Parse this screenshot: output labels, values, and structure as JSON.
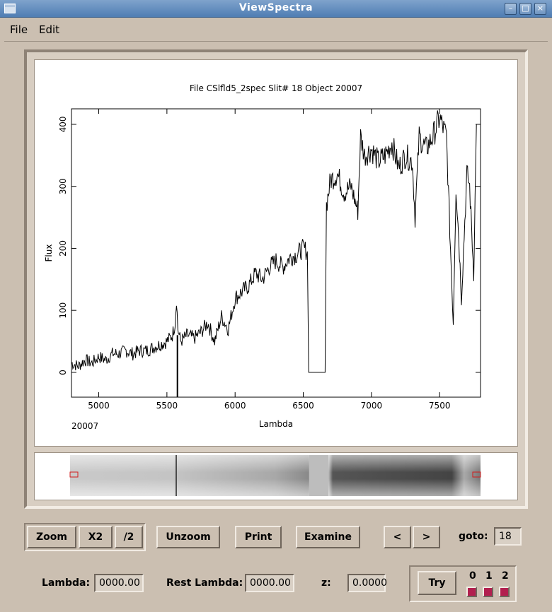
{
  "window": {
    "title": "ViewSpectra"
  },
  "menu": {
    "file": "File",
    "edit": "Edit"
  },
  "chart_data": {
    "type": "line",
    "title": "File CSlfld5_2spec  Slit# 18  Object 20007",
    "xlabel": "Lambda",
    "ylabel": "Flux",
    "xlim": [
      4800,
      7800
    ],
    "ylim": [
      -40,
      425
    ],
    "xticks": [
      5000,
      5500,
      6000,
      6500,
      7000,
      7500
    ],
    "yticks": [
      0,
      100,
      200,
      300,
      400
    ],
    "annotation": "20007",
    "grid": false,
    "series": [
      {
        "x": [
          4800,
          4850,
          4900,
          4950,
          5000,
          5050,
          5100,
          5150,
          5200,
          5250,
          5300,
          5350,
          5400,
          5450,
          5500,
          5540,
          5560,
          5570,
          5580,
          5600,
          5650,
          5700,
          5750,
          5800,
          5850,
          5900,
          5950,
          6000,
          6050,
          6100,
          6150,
          6200,
          6250,
          6300,
          6350,
          6400,
          6450,
          6500,
          6530,
          6540,
          6660,
          6670,
          6700,
          6750,
          6800,
          6850,
          6900,
          6920,
          6950,
          7000,
          7050,
          7100,
          7150,
          7200,
          7250,
          7300,
          7320,
          7350,
          7400,
          7450,
          7500,
          7550,
          7600,
          7620,
          7640,
          7660,
          7700,
          7720,
          7750,
          7770
        ],
        "y": [
          15,
          10,
          20,
          15,
          25,
          20,
          30,
          30,
          35,
          30,
          35,
          35,
          40,
          45,
          50,
          60,
          80,
          120,
          70,
          50,
          60,
          55,
          65,
          80,
          50,
          90,
          70,
          120,
          130,
          140,
          160,
          150,
          170,
          180,
          170,
          185,
          190,
          200,
          195,
          0,
          0,
          270,
          310,
          320,
          290,
          300,
          260,
          380,
          350,
          360,
          340,
          350,
          370,
          330,
          350,
          340,
          250,
          380,
          360,
          380,
          410,
          380,
          80,
          300,
          220,
          120,
          320,
          300,
          160,
          400
        ]
      }
    ]
  },
  "toolbar": {
    "zoom": "Zoom",
    "x2": "X2",
    "half": "/2",
    "unzoom": "Unzoom",
    "print": "Print",
    "examine": "Examine",
    "prev": "<",
    "next": ">",
    "goto_label": "goto:",
    "goto_value": "18"
  },
  "status": {
    "lambda_label": "Lambda:",
    "lambda_value": "0000.00",
    "rest_label": "Rest Lambda:",
    "rest_value": "0000.00",
    "z_label": "z:",
    "z_value": "0.0000",
    "try": "Try",
    "opt0": "0",
    "opt1": "1",
    "opt2": "2"
  }
}
